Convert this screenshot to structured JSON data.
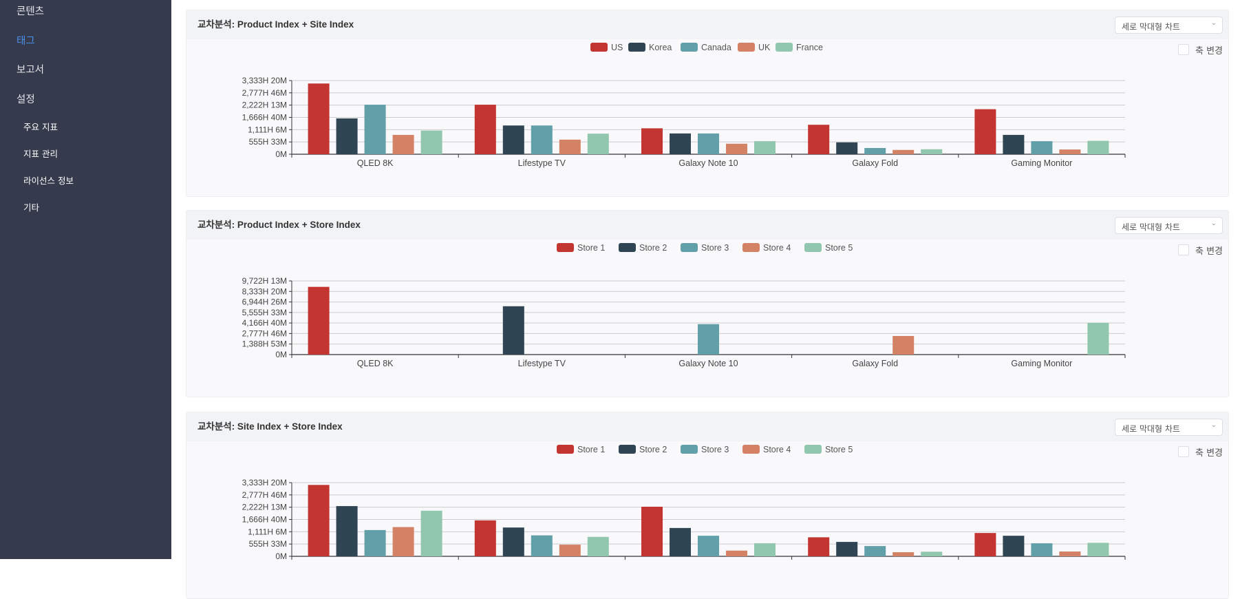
{
  "sidebar": {
    "items": [
      {
        "label": "콘텐츠",
        "active": false
      },
      {
        "label": "태그",
        "active": true
      },
      {
        "label": "보고서",
        "active": false
      },
      {
        "label": "설정",
        "active": false
      }
    ],
    "sub_items": [
      {
        "label": "주요 지표"
      },
      {
        "label": "지표 관리"
      },
      {
        "label": "라이선스 정보"
      },
      {
        "label": "기타"
      }
    ]
  },
  "panels": [
    {
      "title": "교차분석: Product Index + Site Index",
      "select_value": "세로 막대형 차트",
      "axis_toggle_label": "축 변경",
      "axis_toggle_checked": false
    },
    {
      "title": "교차분석: Product Index + Store Index",
      "select_value": "세로 막대형 차트",
      "axis_toggle_label": "축 변경",
      "axis_toggle_checked": false
    },
    {
      "title": "교차분석: Site Index + Store Index",
      "select_value": "세로 막대형 차트",
      "axis_toggle_label": "축 변경",
      "axis_toggle_checked": false
    }
  ],
  "colors": [
    "#c23531",
    "#2f4554",
    "#61a0a8",
    "#d48265",
    "#91c7ae"
  ],
  "chart_data": [
    {
      "type": "bar",
      "title": "교차분석: Product Index + Site Index",
      "categories": [
        "QLED 8K",
        "Lifestype TV",
        "Galaxy Note 10",
        "Galaxy Fold",
        "Gaming Monitor"
      ],
      "series": [
        {
          "name": "US",
          "values": [
            3200,
            2240,
            1172,
            1333,
            2037
          ]
        },
        {
          "name": "Korea",
          "values": [
            1620,
            1300,
            940,
            537,
            875
          ]
        },
        {
          "name": "Canada",
          "values": [
            2240,
            1300,
            940,
            280,
            590
          ]
        },
        {
          "name": "UK",
          "values": [
            875,
            660,
            475,
            195,
            215
          ]
        },
        {
          "name": "France",
          "values": [
            1070,
            930,
            590,
            225,
            605
          ]
        }
      ],
      "ylim": [
        0,
        3333.33
      ],
      "yticks": [
        "0M",
        "555H 33M",
        "1,111H 6M",
        "1,666H 40M",
        "2,222H 13M",
        "2,777H 46M",
        "3,333H 20M"
      ],
      "grid": true,
      "legend": "top-center",
      "xlabel": "",
      "ylabel": ""
    },
    {
      "type": "bar",
      "title": "교차분석: Product Index + Store Index",
      "categories": [
        "QLED 8K",
        "Lifestype TV",
        "Galaxy Note 10",
        "Galaxy Fold",
        "Gaming Monitor"
      ],
      "series": [
        {
          "name": "Store 1",
          "values": [
            8937,
            0,
            0,
            0,
            0
          ]
        },
        {
          "name": "Store 2",
          "values": [
            0,
            6380,
            0,
            0,
            0
          ]
        },
        {
          "name": "Store 3",
          "values": [
            0,
            0,
            4015,
            0,
            0
          ]
        },
        {
          "name": "Store 4",
          "values": [
            0,
            0,
            0,
            2455,
            0
          ]
        },
        {
          "name": "Store 5",
          "values": [
            0,
            0,
            0,
            0,
            4195
          ]
        }
      ],
      "ylim": [
        0,
        9722.22
      ],
      "yticks": [
        "0M",
        "1,388H 53M",
        "2,777H 46M",
        "4,166H 40M",
        "5,555H 33M",
        "6,944H 26M",
        "8,333H 20M",
        "9,722H 13M"
      ],
      "grid": true,
      "legend": "top-center",
      "xlabel": "",
      "ylabel": ""
    },
    {
      "type": "bar",
      "title": "교차분석: Site Index + Store Index",
      "categories": [
        "",
        "",
        "",
        "",
        ""
      ],
      "series": [
        {
          "name": "Store 1",
          "values": [
            3230,
            1626,
            2244,
            860,
            1055
          ]
        },
        {
          "name": "Store 2",
          "values": [
            2272,
            1303,
            1282,
            652,
            930
          ]
        },
        {
          "name": "Store 3",
          "values": [
            1188,
            948,
            930,
            465,
            590
          ]
        },
        {
          "name": "Store 4",
          "values": [
            1323,
            527,
            258,
            186,
            217
          ]
        },
        {
          "name": "Store 5",
          "values": [
            2063,
            880,
            590,
            208,
            610
          ]
        }
      ],
      "ylim": [
        0,
        3333.33
      ],
      "yticks": [
        "0M",
        "555H 33M",
        "1,111H 6M",
        "1,666H 40M",
        "2,222H 13M",
        "2,777H 46M",
        "3,333H 20M"
      ],
      "grid": true,
      "legend": "top-center",
      "xlabel": "",
      "ylabel": ""
    }
  ]
}
